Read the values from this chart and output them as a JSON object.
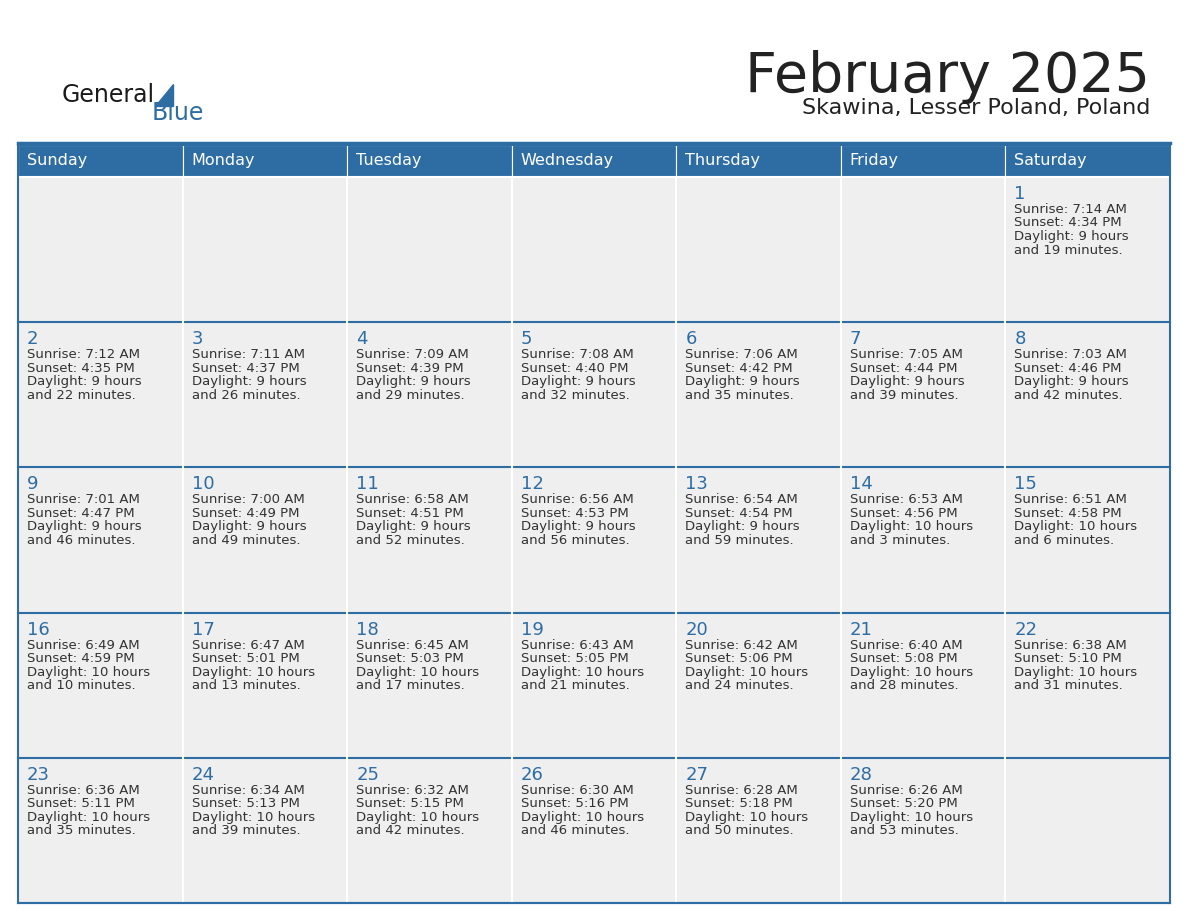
{
  "title": "February 2025",
  "subtitle": "Skawina, Lesser Poland, Poland",
  "days_of_week": [
    "Sunday",
    "Monday",
    "Tuesday",
    "Wednesday",
    "Thursday",
    "Friday",
    "Saturday"
  ],
  "header_bg": "#2E6DA4",
  "header_fg": "#FFFFFF",
  "cell_bg": "#EFEFEF",
  "cell_border_color": "#FFFFFF",
  "row_separator_color": "#2E6DA4",
  "day_number_color": "#2E6DA4",
  "text_color": "#333333",
  "title_color": "#222222",
  "logo_general_color": "#1a1a1a",
  "logo_blue_color": "#2E6DA4",
  "calendar_data": [
    [
      null,
      null,
      null,
      null,
      null,
      null,
      {
        "day": "1",
        "sunrise": "7:14 AM",
        "sunset": "4:34 PM",
        "daylight_h": "9 hours",
        "daylight_m": "and 19 minutes."
      }
    ],
    [
      {
        "day": "2",
        "sunrise": "7:12 AM",
        "sunset": "4:35 PM",
        "daylight_h": "9 hours",
        "daylight_m": "and 22 minutes."
      },
      {
        "day": "3",
        "sunrise": "7:11 AM",
        "sunset": "4:37 PM",
        "daylight_h": "9 hours",
        "daylight_m": "and 26 minutes."
      },
      {
        "day": "4",
        "sunrise": "7:09 AM",
        "sunset": "4:39 PM",
        "daylight_h": "9 hours",
        "daylight_m": "and 29 minutes."
      },
      {
        "day": "5",
        "sunrise": "7:08 AM",
        "sunset": "4:40 PM",
        "daylight_h": "9 hours",
        "daylight_m": "and 32 minutes."
      },
      {
        "day": "6",
        "sunrise": "7:06 AM",
        "sunset": "4:42 PM",
        "daylight_h": "9 hours",
        "daylight_m": "and 35 minutes."
      },
      {
        "day": "7",
        "sunrise": "7:05 AM",
        "sunset": "4:44 PM",
        "daylight_h": "9 hours",
        "daylight_m": "and 39 minutes."
      },
      {
        "day": "8",
        "sunrise": "7:03 AM",
        "sunset": "4:46 PM",
        "daylight_h": "9 hours",
        "daylight_m": "and 42 minutes."
      }
    ],
    [
      {
        "day": "9",
        "sunrise": "7:01 AM",
        "sunset": "4:47 PM",
        "daylight_h": "9 hours",
        "daylight_m": "and 46 minutes."
      },
      {
        "day": "10",
        "sunrise": "7:00 AM",
        "sunset": "4:49 PM",
        "daylight_h": "9 hours",
        "daylight_m": "and 49 minutes."
      },
      {
        "day": "11",
        "sunrise": "6:58 AM",
        "sunset": "4:51 PM",
        "daylight_h": "9 hours",
        "daylight_m": "and 52 minutes."
      },
      {
        "day": "12",
        "sunrise": "6:56 AM",
        "sunset": "4:53 PM",
        "daylight_h": "9 hours",
        "daylight_m": "and 56 minutes."
      },
      {
        "day": "13",
        "sunrise": "6:54 AM",
        "sunset": "4:54 PM",
        "daylight_h": "9 hours",
        "daylight_m": "and 59 minutes."
      },
      {
        "day": "14",
        "sunrise": "6:53 AM",
        "sunset": "4:56 PM",
        "daylight_h": "10 hours",
        "daylight_m": "and 3 minutes."
      },
      {
        "day": "15",
        "sunrise": "6:51 AM",
        "sunset": "4:58 PM",
        "daylight_h": "10 hours",
        "daylight_m": "and 6 minutes."
      }
    ],
    [
      {
        "day": "16",
        "sunrise": "6:49 AM",
        "sunset": "4:59 PM",
        "daylight_h": "10 hours",
        "daylight_m": "and 10 minutes."
      },
      {
        "day": "17",
        "sunrise": "6:47 AM",
        "sunset": "5:01 PM",
        "daylight_h": "10 hours",
        "daylight_m": "and 13 minutes."
      },
      {
        "day": "18",
        "sunrise": "6:45 AM",
        "sunset": "5:03 PM",
        "daylight_h": "10 hours",
        "daylight_m": "and 17 minutes."
      },
      {
        "day": "19",
        "sunrise": "6:43 AM",
        "sunset": "5:05 PM",
        "daylight_h": "10 hours",
        "daylight_m": "and 21 minutes."
      },
      {
        "day": "20",
        "sunrise": "6:42 AM",
        "sunset": "5:06 PM",
        "daylight_h": "10 hours",
        "daylight_m": "and 24 minutes."
      },
      {
        "day": "21",
        "sunrise": "6:40 AM",
        "sunset": "5:08 PM",
        "daylight_h": "10 hours",
        "daylight_m": "and 28 minutes."
      },
      {
        "day": "22",
        "sunrise": "6:38 AM",
        "sunset": "5:10 PM",
        "daylight_h": "10 hours",
        "daylight_m": "and 31 minutes."
      }
    ],
    [
      {
        "day": "23",
        "sunrise": "6:36 AM",
        "sunset": "5:11 PM",
        "daylight_h": "10 hours",
        "daylight_m": "and 35 minutes."
      },
      {
        "day": "24",
        "sunrise": "6:34 AM",
        "sunset": "5:13 PM",
        "daylight_h": "10 hours",
        "daylight_m": "and 39 minutes."
      },
      {
        "day": "25",
        "sunrise": "6:32 AM",
        "sunset": "5:15 PM",
        "daylight_h": "10 hours",
        "daylight_m": "and 42 minutes."
      },
      {
        "day": "26",
        "sunrise": "6:30 AM",
        "sunset": "5:16 PM",
        "daylight_h": "10 hours",
        "daylight_m": "and 46 minutes."
      },
      {
        "day": "27",
        "sunrise": "6:28 AM",
        "sunset": "5:18 PM",
        "daylight_h": "10 hours",
        "daylight_m": "and 50 minutes."
      },
      {
        "day": "28",
        "sunrise": "6:26 AM",
        "sunset": "5:20 PM",
        "daylight_h": "10 hours",
        "daylight_m": "and 53 minutes."
      },
      null
    ]
  ]
}
